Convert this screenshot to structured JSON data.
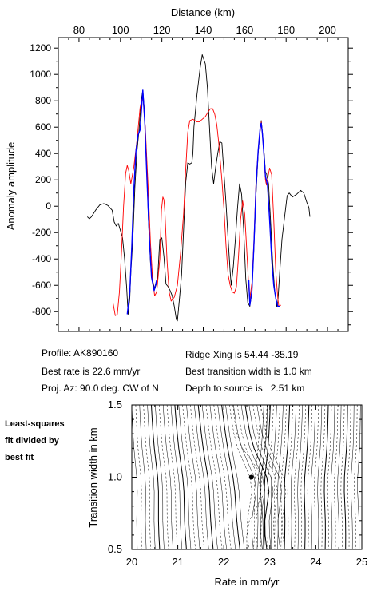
{
  "chart_data": [
    {
      "type": "line",
      "xlabel": "Distance (km)",
      "ylabel": "Anomaly amplitude",
      "xlim": [
        70,
        210
      ],
      "ylim": [
        -950,
        1280
      ],
      "xticks": [
        80,
        100,
        120,
        140,
        160,
        180,
        200
      ],
      "yticks": [
        -800,
        -600,
        -400,
        -200,
        0,
        200,
        400,
        600,
        800,
        1000,
        1200
      ],
      "grid": false,
      "series": [
        {
          "color": "#000000",
          "points": [
            [
              84,
              -80
            ],
            [
              85,
              -95
            ],
            [
              86,
              -80
            ],
            [
              88,
              -30
            ],
            [
              90,
              10
            ],
            [
              92,
              20
            ],
            [
              94,
              5
            ],
            [
              96,
              -30
            ],
            [
              97,
              -120
            ],
            [
              98,
              -150
            ],
            [
              99,
              -130
            ],
            [
              101,
              -240
            ],
            [
              102,
              -400
            ],
            [
              103,
              -620
            ],
            [
              103.7,
              -820
            ],
            [
              104.5,
              -700
            ],
            [
              105,
              -500
            ],
            [
              106,
              -250
            ],
            [
              107,
              150
            ],
            [
              108,
              420
            ],
            [
              109,
              580
            ],
            [
              110,
              800
            ],
            [
              110.8,
              880
            ],
            [
              111.5,
              740
            ],
            [
              112.5,
              400
            ],
            [
              113.5,
              -100
            ],
            [
              114.5,
              -430
            ],
            [
              115.5,
              -560
            ],
            [
              116.5,
              -630
            ],
            [
              117.5,
              -580
            ],
            [
              118,
              -530
            ],
            [
              119,
              -250
            ],
            [
              120,
              -240
            ],
            [
              121,
              -380
            ],
            [
              122,
              -590
            ],
            [
              123,
              -610
            ],
            [
              124,
              -640
            ],
            [
              125,
              -680
            ],
            [
              126,
              -760
            ],
            [
              127,
              -860
            ],
            [
              127.5,
              -870
            ],
            [
              128.5,
              -700
            ],
            [
              129.5,
              -520
            ],
            [
              130.5,
              -170
            ],
            [
              131.5,
              180
            ],
            [
              132.5,
              330
            ],
            [
              133.5,
              320
            ],
            [
              134.5,
              330
            ],
            [
              135,
              400
            ],
            [
              135.5,
              600
            ],
            [
              137,
              850
            ],
            [
              138.5,
              1050
            ],
            [
              139.5,
              1150
            ],
            [
              141,
              1080
            ],
            [
              142,
              900
            ],
            [
              143,
              600
            ],
            [
              144,
              300
            ],
            [
              145,
              170
            ],
            [
              146,
              300
            ],
            [
              147,
              400
            ],
            [
              148,
              490
            ],
            [
              149,
              480
            ],
            [
              150,
              250
            ],
            [
              151,
              20
            ],
            [
              152,
              -250
            ],
            [
              153,
              -500
            ],
            [
              153.5,
              -600
            ],
            [
              154.5,
              -460
            ],
            [
              155.5,
              -250
            ],
            [
              156.5,
              -20
            ],
            [
              157.5,
              170
            ],
            [
              158.5,
              90
            ],
            [
              159.5,
              -180
            ],
            [
              160.5,
              -550
            ],
            [
              161.5,
              -730
            ],
            [
              162.5,
              -760
            ],
            [
              163.5,
              -650
            ],
            [
              164.5,
              -300
            ],
            [
              165.5,
              100
            ],
            [
              166.5,
              400
            ],
            [
              167.5,
              580
            ],
            [
              168,
              650
            ],
            [
              168.5,
              570
            ],
            [
              169.5,
              380
            ],
            [
              170,
              260
            ],
            [
              170.5,
              250
            ],
            [
              171.5,
              170
            ],
            [
              172.5,
              -120
            ],
            [
              173.5,
              -430
            ],
            [
              174.5,
              -650
            ],
            [
              175.5,
              -760
            ],
            [
              176,
              -730
            ],
            [
              177,
              -480
            ],
            [
              178,
              -250
            ],
            [
              179.5,
              -50
            ],
            [
              180.5,
              80
            ],
            [
              181.5,
              100
            ],
            [
              183,
              70
            ],
            [
              185,
              90
            ],
            [
              187,
              120
            ],
            [
              188.5,
              100
            ],
            [
              190,
              30
            ],
            [
              191,
              -10
            ],
            [
              191.5,
              -80
            ]
          ]
        },
        {
          "color": "#ff0000",
          "points": [
            [
              96.5,
              -740
            ],
            [
              97.5,
              -830
            ],
            [
              98.5,
              -820
            ],
            [
              99.5,
              -650
            ],
            [
              100.5,
              -350
            ],
            [
              101.5,
              0
            ],
            [
              102.5,
              250
            ],
            [
              103.3,
              310
            ],
            [
              104,
              270
            ],
            [
              105,
              170
            ],
            [
              106.5,
              300
            ],
            [
              108,
              500
            ],
            [
              109.5,
              750
            ],
            [
              110.8,
              840
            ],
            [
              112,
              600
            ],
            [
              113.5,
              100
            ],
            [
              114.5,
              -280
            ],
            [
              115.5,
              -550
            ],
            [
              116.5,
              -680
            ],
            [
              117.5,
              -650
            ],
            [
              119,
              -400
            ],
            [
              119.8,
              -30
            ],
            [
              120.5,
              70
            ],
            [
              121,
              50
            ],
            [
              121.5,
              -50
            ],
            [
              122.5,
              -410
            ],
            [
              123.5,
              -650
            ],
            [
              124.5,
              -720
            ],
            [
              126,
              -690
            ],
            [
              127.5,
              -600
            ],
            [
              129,
              -360
            ],
            [
              130.5,
              -50
            ],
            [
              131.5,
              280
            ],
            [
              132.5,
              560
            ],
            [
              133.5,
              650
            ],
            [
              135,
              660
            ],
            [
              137,
              640
            ],
            [
              138,
              640
            ],
            [
              139.5,
              660
            ],
            [
              141,
              680
            ],
            [
              142.5,
              720
            ],
            [
              143.5,
              740
            ],
            [
              144.5,
              740
            ],
            [
              145.5,
              700
            ],
            [
              146.5,
              620
            ],
            [
              147.5,
              480
            ],
            [
              149,
              200
            ],
            [
              150,
              -20
            ],
            [
              151,
              -300
            ],
            [
              152,
              -520
            ],
            [
              153,
              -600
            ],
            [
              154,
              -650
            ],
            [
              155,
              -660
            ],
            [
              156,
              -610
            ],
            [
              157,
              -380
            ],
            [
              158,
              -100
            ],
            [
              159,
              40
            ],
            [
              160,
              -60
            ],
            [
              161,
              -340
            ],
            [
              162,
              -620
            ],
            [
              162.5,
              -700
            ],
            [
              163.5,
              -580
            ],
            [
              164.5,
              -250
            ],
            [
              165.5,
              200
            ],
            [
              167,
              520
            ],
            [
              168,
              640
            ],
            [
              169,
              460
            ],
            [
              170,
              200
            ],
            [
              170.5,
              160
            ],
            [
              171,
              200
            ],
            [
              172,
              290
            ],
            [
              173,
              240
            ],
            [
              174,
              -100
            ],
            [
              175,
              -500
            ],
            [
              176,
              -700
            ],
            [
              176.5,
              -760
            ],
            [
              177.5,
              -750
            ]
          ]
        },
        {
          "color": "#0000ff",
          "points": [
            [
              103.3,
              -820
            ],
            [
              104.5,
              -650
            ],
            [
              105.5,
              -300
            ],
            [
              106.5,
              130
            ],
            [
              107.5,
              420
            ],
            [
              108.5,
              540
            ],
            [
              109.5,
              580
            ],
            [
              110.8,
              880
            ],
            [
              111.8,
              620
            ],
            [
              112.8,
              200
            ],
            [
              114,
              -250
            ],
            [
              115,
              -540
            ],
            [
              116.3,
              -640
            ],
            [
              117.5,
              -560
            ],
            [
              162,
              -560
            ],
            [
              162.5,
              -750
            ],
            [
              163.5,
              -640
            ],
            [
              164.5,
              -280
            ],
            [
              165.5,
              150
            ],
            [
              166.5,
              420
            ],
            [
              167.5,
              600
            ],
            [
              168,
              630
            ],
            [
              168.5,
              560
            ],
            [
              169.5,
              350
            ],
            [
              170,
              230
            ],
            [
              171,
              160
            ],
            [
              172,
              -100
            ],
            [
              173,
              -400
            ],
            [
              174,
              -600
            ],
            [
              175,
              -700
            ],
            [
              176,
              -760
            ],
            [
              177,
              -760
            ]
          ]
        }
      ]
    },
    {
      "type": "contour",
      "xlabel": "Rate in mm/yr",
      "ylabel": "Transition width in km",
      "xlim": [
        20,
        25
      ],
      "ylim": [
        0.5,
        1.5
      ],
      "xticks": [
        20,
        21,
        22,
        23,
        24,
        25
      ],
      "yticks": [
        0.5,
        1.0,
        1.5
      ],
      "best_fit": {
        "rate": 22.6,
        "width": 1.0
      }
    }
  ],
  "info": {
    "profile": "Profile: AK890160",
    "best_rate": "Best rate is 22.6 mm/yr",
    "proj_az": "Proj. Az: 90.0 deg. CW of N",
    "ridge_xing": "Ridge Xing is 54.44 -35.19",
    "best_width": "Best transition width is 1.0 km",
    "depth": "Depth to source is   2.51 km"
  },
  "side_label": [
    "Least-squares",
    "fit divided by",
    "best fit"
  ]
}
